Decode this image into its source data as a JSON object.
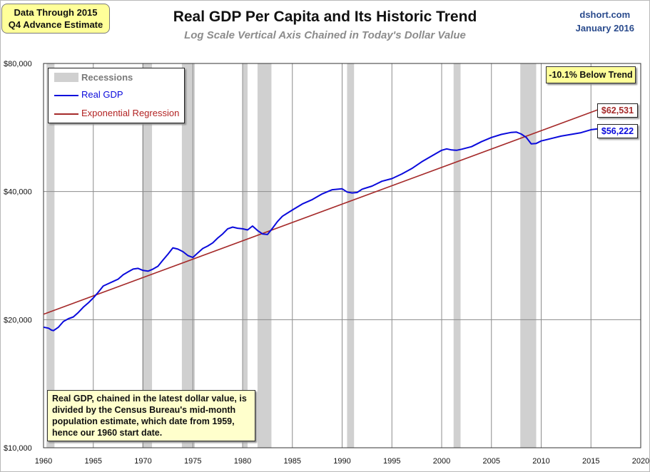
{
  "header": {
    "data_note_line1": "Data Through 2015",
    "data_note_line2": "Q4 Advance Estimate",
    "title": "Real GDP Per Capita and Its Historic Trend",
    "subtitle": "Log Scale Vertical Axis Chained in Today's Dollar Value",
    "source": "dshort.com",
    "date": "January 2016"
  },
  "legend": {
    "recessions": "Recessions",
    "real_gdp": "Real GDP",
    "regression": "Exponential Regression"
  },
  "annotations": {
    "trend_gap": "-10.1% Below Trend",
    "regression_end": "$62,531",
    "gdp_end": "$56,222",
    "note": "Real GDP, chained in the latest dollar value, is divided by the Census Bureau's mid-month population estimate, which date from 1959, hence our 1960 start date."
  },
  "colors": {
    "gdp": "#0a0adc",
    "regression": "#a52a2a",
    "recession": "#d0d0d0",
    "grid": "#8c8c8c"
  },
  "chart_data": {
    "type": "line",
    "title": "Real GDP Per Capita and Its Historic Trend",
    "subtitle": "Log Scale Vertical Axis Chained in Today's Dollar Value",
    "xlim": [
      1960,
      2020
    ],
    "ylim": [
      10000,
      80000
    ],
    "yscale": "log2",
    "x_ticks": [
      "1960",
      "1965",
      "1970",
      "1975",
      "1980",
      "1985",
      "1990",
      "1995",
      "2000",
      "2005",
      "2010",
      "2015",
      "2020"
    ],
    "y_ticks": [
      "$10,000",
      "$20,000",
      "$40,000",
      "$80,000"
    ],
    "y_tick_values": [
      10000,
      20000,
      40000,
      80000
    ],
    "grid": true,
    "legend_position": "top-left",
    "recessions": [
      [
        1960.3,
        1961.1
      ],
      [
        1969.9,
        1970.9
      ],
      [
        1973.9,
        1975.2
      ],
      [
        1980.0,
        1980.5
      ],
      [
        1981.5,
        1982.9
      ],
      [
        1990.5,
        1991.2
      ],
      [
        2001.2,
        2001.9
      ],
      [
        2007.9,
        2009.5
      ]
    ],
    "series": [
      {
        "name": "Real GDP",
        "x": [
          1960.0,
          1960.5,
          1960.8,
          1961.0,
          1961.5,
          1962.0,
          1962.5,
          1963.0,
          1963.5,
          1964.0,
          1964.5,
          1965.0,
          1965.5,
          1966.0,
          1966.5,
          1967.0,
          1967.5,
          1968.0,
          1968.5,
          1969.0,
          1969.5,
          1970.0,
          1970.5,
          1971.0,
          1971.5,
          1972.0,
          1972.5,
          1973.0,
          1973.5,
          1974.0,
          1974.5,
          1975.0,
          1975.5,
          1976.0,
          1976.5,
          1977.0,
          1977.5,
          1978.0,
          1978.5,
          1979.0,
          1979.5,
          1980.0,
          1980.5,
          1981.0,
          1981.5,
          1982.0,
          1982.5,
          1983.0,
          1983.5,
          1984.0,
          1984.5,
          1985.0,
          1986.0,
          1987.0,
          1988.0,
          1989.0,
          1990.0,
          1990.5,
          1991.0,
          1991.5,
          1992.0,
          1993.0,
          1994.0,
          1995.0,
          1996.0,
          1997.0,
          1998.0,
          1999.0,
          2000.0,
          2000.5,
          2001.0,
          2001.5,
          2002.0,
          2003.0,
          2004.0,
          2005.0,
          2006.0,
          2007.0,
          2007.5,
          2008.0,
          2008.5,
          2009.0,
          2009.5,
          2010.0,
          2011.0,
          2012.0,
          2013.0,
          2014.0,
          2015.0,
          2015.9
        ],
        "values": [
          19200,
          19100,
          18900,
          18850,
          19200,
          19800,
          20100,
          20300,
          20800,
          21400,
          21900,
          22500,
          23200,
          24000,
          24300,
          24600,
          24900,
          25500,
          25900,
          26300,
          26400,
          26100,
          26000,
          26300,
          26700,
          27600,
          28500,
          29500,
          29300,
          28900,
          28300,
          28000,
          28700,
          29400,
          29800,
          30300,
          31100,
          31800,
          32700,
          33000,
          32800,
          32700,
          32500,
          33200,
          32400,
          31800,
          31700,
          32800,
          34000,
          35000,
          35600,
          36200,
          37400,
          38300,
          39500,
          40400,
          40600,
          39900,
          39700,
          39800,
          40500,
          41200,
          42300,
          42900,
          44000,
          45300,
          47000,
          48500,
          50000,
          50400,
          50100,
          50000,
          50300,
          51000,
          52400,
          53600,
          54500,
          55100,
          55200,
          54600,
          53600,
          51800,
          51900,
          52600,
          53300,
          54000,
          54500,
          55000,
          55900,
          56222
        ]
      },
      {
        "name": "Exponential Regression",
        "x": [
          1960.0,
          2015.9
        ],
        "values": [
          20600,
          62531
        ]
      }
    ]
  }
}
